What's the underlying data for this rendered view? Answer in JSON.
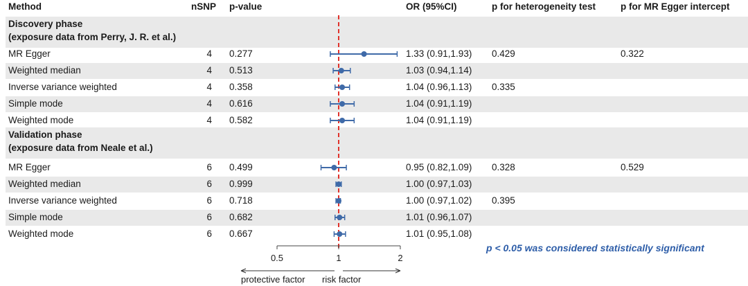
{
  "header": {
    "method": "Method",
    "nsnp": "nSNP",
    "pvalue": "p-value",
    "or": "OR (95%CI)",
    "het": "p for heterogeneity test",
    "egger": "p for MR Egger intercept"
  },
  "sections": [
    {
      "title": "Discovery phase",
      "subtitle": "(exposure data from Perry, J. R. et al.)",
      "rows": [
        {
          "method": "MR Egger",
          "nsnp": "4",
          "pvalue": "0.277",
          "or_text": "1.33 (0.91,1.93)",
          "het": "0.429",
          "egger": "0.322"
        },
        {
          "method": "Weighted median",
          "nsnp": "4",
          "pvalue": "0.513",
          "or_text": "1.03 (0.94,1.14)",
          "het": "",
          "egger": ""
        },
        {
          "method": "Inverse variance weighted",
          "nsnp": "4",
          "pvalue": "0.358",
          "or_text": "1.04 (0.96,1.13)",
          "het": "0.335",
          "egger": ""
        },
        {
          "method": "Simple mode",
          "nsnp": "4",
          "pvalue": "0.616",
          "or_text": "1.04 (0.91,1.19)",
          "het": "",
          "egger": ""
        },
        {
          "method": "Weighted mode",
          "nsnp": "4",
          "pvalue": "0.582",
          "or_text": "1.04 (0.91,1.19)",
          "het": "",
          "egger": ""
        }
      ]
    },
    {
      "title": "Validation phase",
      "subtitle": " (exposure data from Neale et al.)",
      "rows": [
        {
          "method": "MR Egger",
          "nsnp": "6",
          "pvalue": "0.499",
          "or_text": "0.95 (0.82,1.09)",
          "het": "0.328",
          "egger": "0.529"
        },
        {
          "method": "Weighted median",
          "nsnp": "6",
          "pvalue": "0.999",
          "or_text": "1.00 (0.97,1.03)",
          "het": "",
          "egger": ""
        },
        {
          "method": "Inverse variance weighted",
          "nsnp": "6",
          "pvalue": "0.718",
          "or_text": "1.00 (0.97,1.02)",
          "het": "0.395",
          "egger": ""
        },
        {
          "method": "Simple mode",
          "nsnp": "6",
          "pvalue": "0.682",
          "or_text": "1.01 (0.96,1.07)",
          "het": "",
          "egger": ""
        },
        {
          "method": "Weighted mode",
          "nsnp": "6",
          "pvalue": "0.667",
          "or_text": "1.01 (0.95,1.08)",
          "het": "",
          "egger": ""
        }
      ]
    }
  ],
  "note": "p < 0.05 was considered statistically significant",
  "axis": {
    "ticks": [
      "0.5",
      "1",
      "2"
    ],
    "left_label": "protective factor",
    "right_label": "risk factor"
  },
  "colors": {
    "point": "#3f6aa8",
    "ref_line": "#e0322b",
    "band": "#e9e9e9",
    "note": "#2d5da8"
  },
  "chart_data": {
    "type": "forest",
    "x_scale": "log2",
    "xlim": [
      0.5,
      2
    ],
    "reference": 1,
    "series": [
      {
        "name": "Discovery phase",
        "points": [
          {
            "label": "MR Egger",
            "or": 1.33,
            "lo": 0.91,
            "hi": 1.93
          },
          {
            "label": "Weighted median",
            "or": 1.03,
            "lo": 0.94,
            "hi": 1.14
          },
          {
            "label": "Inverse variance weighted",
            "or": 1.04,
            "lo": 0.96,
            "hi": 1.13
          },
          {
            "label": "Simple mode",
            "or": 1.04,
            "lo": 0.91,
            "hi": 1.19
          },
          {
            "label": "Weighted mode",
            "or": 1.04,
            "lo": 0.91,
            "hi": 1.19
          }
        ]
      },
      {
        "name": "Validation phase",
        "points": [
          {
            "label": "MR Egger",
            "or": 0.95,
            "lo": 0.82,
            "hi": 1.09
          },
          {
            "label": "Weighted median",
            "or": 1.0,
            "lo": 0.97,
            "hi": 1.03
          },
          {
            "label": "Inverse variance weighted",
            "or": 1.0,
            "lo": 0.97,
            "hi": 1.02
          },
          {
            "label": "Simple mode",
            "or": 1.01,
            "lo": 0.96,
            "hi": 1.07
          },
          {
            "label": "Weighted mode",
            "or": 1.01,
            "lo": 0.95,
            "hi": 1.08
          }
        ]
      }
    ]
  }
}
